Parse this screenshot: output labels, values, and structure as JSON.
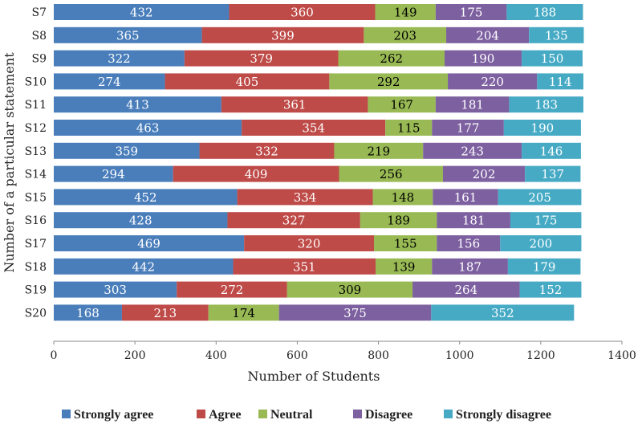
{
  "chart_data": {
    "type": "bar",
    "orientation": "horizontal",
    "stacked": true,
    "title": "",
    "xlabel": "Number of Students",
    "ylabel": "Number of a particular statement",
    "xlim": [
      0,
      1400
    ],
    "xticks": [
      0,
      200,
      400,
      600,
      800,
      1000,
      1200,
      1400
    ],
    "grid": false,
    "legend_position": "bottom",
    "categories": [
      "S7",
      "S8",
      "S9",
      "S10",
      "S11",
      "S12",
      "S13",
      "S14",
      "S15",
      "S16",
      "S17",
      "S18",
      "S19",
      "S20"
    ],
    "series": [
      {
        "name": "Strongly agree",
        "color": "#4a7ebb",
        "label_color": "#ffffff",
        "values": [
          432,
          365,
          322,
          274,
          413,
          463,
          359,
          294,
          452,
          428,
          469,
          442,
          303,
          168
        ]
      },
      {
        "name": "Agree",
        "color": "#be4b48",
        "label_color": "#ffffff",
        "values": [
          360,
          399,
          379,
          405,
          361,
          354,
          332,
          409,
          334,
          327,
          320,
          351,
          272,
          213
        ]
      },
      {
        "name": "Neutral",
        "color": "#98b954",
        "label_color": "#000000",
        "values": [
          149,
          203,
          262,
          292,
          167,
          115,
          219,
          256,
          148,
          189,
          155,
          139,
          309,
          174
        ]
      },
      {
        "name": "Disagree",
        "color": "#7d60a0",
        "label_color": "#ffffff",
        "values": [
          175,
          204,
          190,
          220,
          181,
          177,
          243,
          202,
          161,
          181,
          156,
          187,
          264,
          375
        ]
      },
      {
        "name": "Strongly disagree",
        "color": "#46aac5",
        "label_color": "#ffffff",
        "values": [
          188,
          135,
          150,
          114,
          183,
          190,
          146,
          137,
          205,
          175,
          200,
          179,
          152,
          352
        ]
      }
    ]
  }
}
